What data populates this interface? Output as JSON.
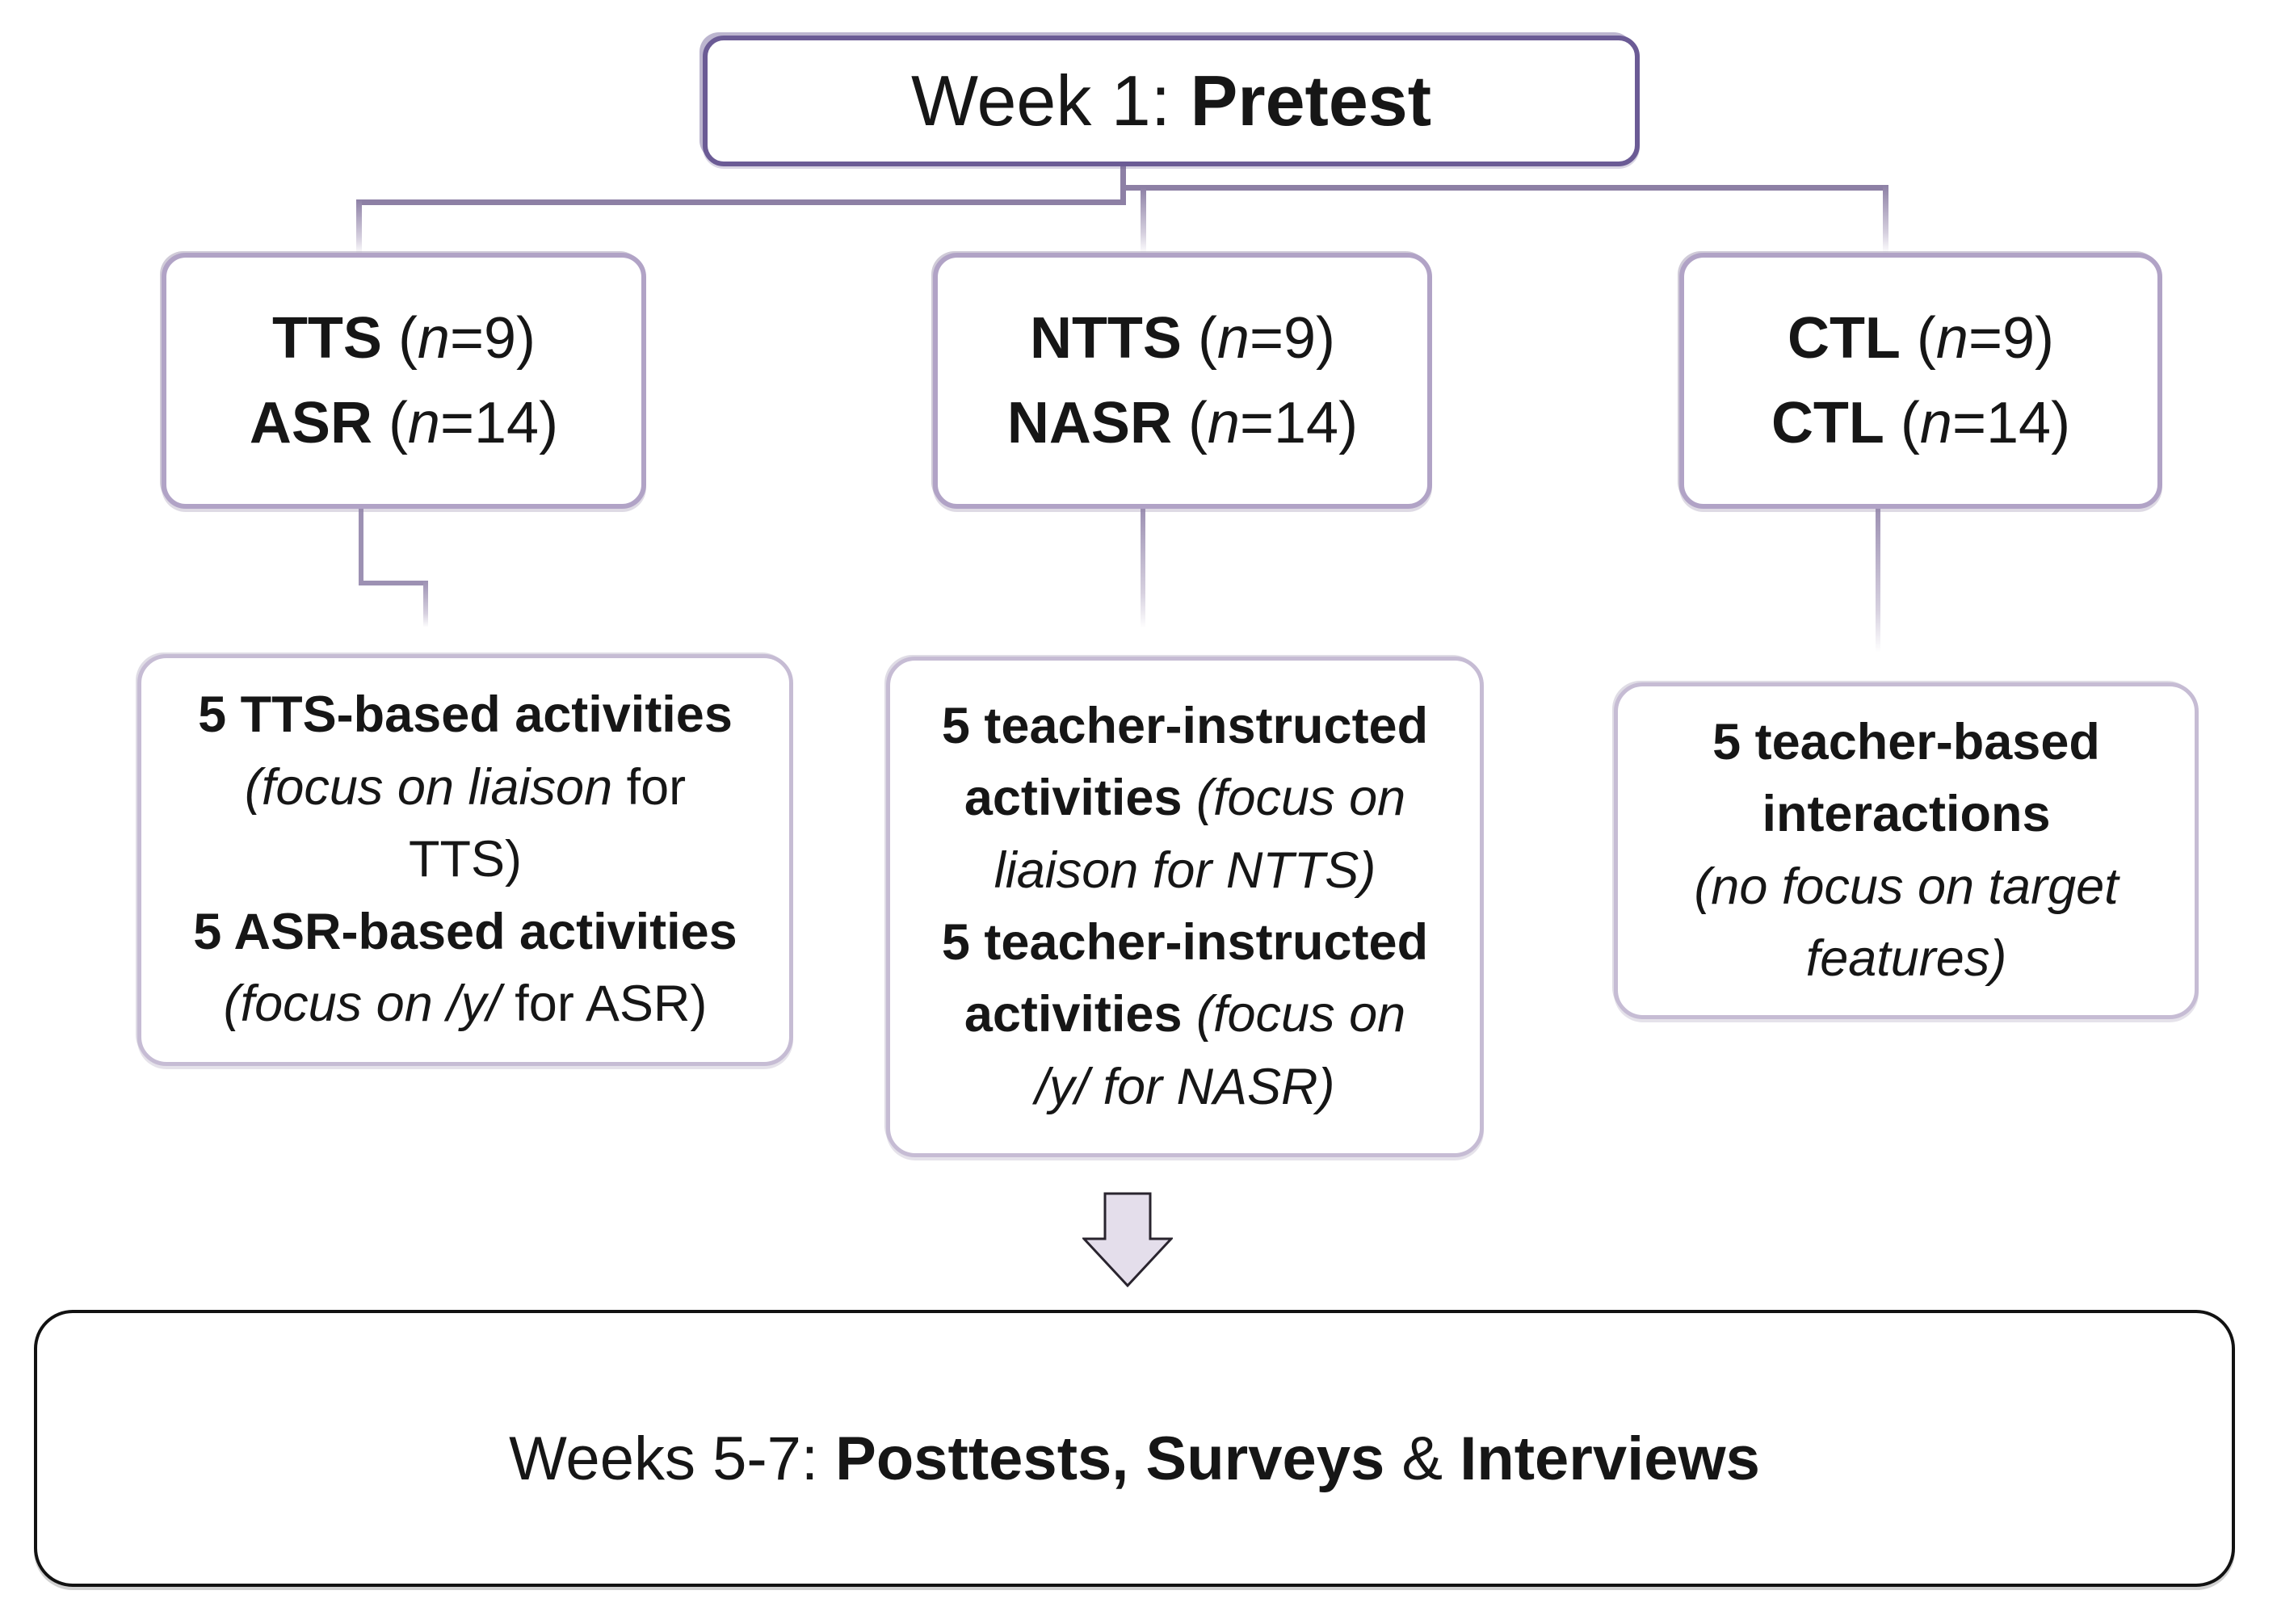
{
  "palette": {
    "background": "#ffffff",
    "text": "#161616",
    "top_border": "#6b5b95",
    "branch_border": "#b1a3c6",
    "activity_border": "#c6bcd4",
    "connector_dark": "#8d80a5",
    "connector_mid": "#9d91b3",
    "connector_light": "#d6d0df",
    "arrow_fill": "#e4deeb",
    "arrow_stroke": "#29242e",
    "bottom_border": "#121212"
  },
  "icons": {
    "down_arrow": "down-block-arrow"
  },
  "top_box": {
    "segments": [
      {
        "t": "Week 1: "
      },
      {
        "t": "Pretest",
        "b": true
      }
    ]
  },
  "branches": [
    {
      "name": "tts-asr",
      "lines": [
        [
          {
            "t": "TTS",
            "b": true
          },
          {
            "t": " ("
          },
          {
            "t": "n",
            "i": true
          },
          {
            "t": "=9)"
          }
        ],
        [
          {
            "t": "ASR",
            "b": true
          },
          {
            "t": " ("
          },
          {
            "t": "n",
            "i": true
          },
          {
            "t": "=14)"
          }
        ]
      ]
    },
    {
      "name": "ntts-nasr",
      "lines": [
        [
          {
            "t": "NTTS",
            "b": true
          },
          {
            "t": " ("
          },
          {
            "t": "n",
            "i": true
          },
          {
            "t": "=9)"
          }
        ],
        [
          {
            "t": "NASR",
            "b": true
          },
          {
            "t": " ("
          },
          {
            "t": "n",
            "i": true
          },
          {
            "t": "=14)"
          }
        ]
      ]
    },
    {
      "name": "ctl",
      "lines": [
        [
          {
            "t": "CTL",
            "b": true
          },
          {
            "t": " ("
          },
          {
            "t": "n",
            "i": true
          },
          {
            "t": "=9)"
          }
        ],
        [
          {
            "t": "CTL",
            "b": true
          },
          {
            "t": " ("
          },
          {
            "t": "n",
            "i": true
          },
          {
            "t": "=14)"
          }
        ]
      ]
    }
  ],
  "activities": [
    {
      "name": "tts-asr-activities",
      "lines": [
        [
          {
            "t": "5 TTS-based activities",
            "b": true
          }
        ],
        [
          {
            "t": "(focus on liaison",
            "i": true
          },
          {
            "t": " for"
          }
        ],
        [
          {
            "t": "TTS)"
          }
        ],
        [
          {
            "t": "5 ASR-based activities",
            "b": true
          }
        ],
        [
          {
            "t": "(focus on /y/",
            "i": true
          },
          {
            "t": " for ASR)"
          }
        ]
      ]
    },
    {
      "name": "teacher-instructed-activities",
      "lines": [
        [
          {
            "t": "5 teacher-instructed",
            "b": true
          }
        ],
        [
          {
            "t": "activities",
            "b": true
          },
          {
            "t": " "
          },
          {
            "t": "(focus on",
            "i": true
          }
        ],
        [
          {
            "t": "liaison for NTTS)",
            "i": true
          }
        ],
        [
          {
            "t": "5 teacher-instructed",
            "b": true
          }
        ],
        [
          {
            "t": "activities",
            "b": true
          },
          {
            "t": " "
          },
          {
            "t": "(focus on",
            "i": true
          }
        ],
        [
          {
            "t": "/y/ for NASR)",
            "i": true
          }
        ]
      ]
    },
    {
      "name": "teacher-based-interactions",
      "lines": [
        [
          {
            "t": "5 teacher-based",
            "b": true
          }
        ],
        [
          {
            "t": "interactions",
            "b": true
          }
        ],
        [
          {
            "t": "(no focus on target",
            "i": true
          }
        ],
        [
          {
            "t": "features)",
            "i": true
          }
        ]
      ]
    }
  ],
  "bottom_box": {
    "segments": [
      {
        "t": "Weeks 5-7: "
      },
      {
        "t": "Posttests, Surveys",
        "b": true
      },
      {
        "t": " & "
      },
      {
        "t": "Interviews",
        "b": true
      }
    ]
  }
}
